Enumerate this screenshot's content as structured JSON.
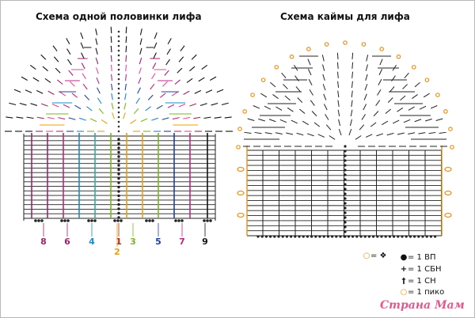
{
  "titles": {
    "left": "Схема одной половинки лифа",
    "right": "Схема каймы для лифа"
  },
  "column_numbers": [
    {
      "label": "8",
      "color": "#a0206e"
    },
    {
      "label": "6",
      "color": "#a0206e"
    },
    {
      "label": "4",
      "color": "#1a8ac8"
    },
    {
      "label": "1",
      "color": "#c0201a"
    },
    {
      "label": "2",
      "color": "#e8a10a"
    },
    {
      "label": "3",
      "color": "#7cb518"
    },
    {
      "label": "5",
      "color": "#2040a0"
    },
    {
      "label": "7",
      "color": "#c02680"
    },
    {
      "label": "9",
      "color": "#111111"
    }
  ],
  "legend": {
    "pico_equation": "= ❖",
    "ch": "= 1 ВП",
    "sc": "= 1 СБН",
    "dc": "= 1 СН",
    "pico": "= 1 пико"
  },
  "colors": {
    "rainbow": [
      "#111111",
      "#c02680",
      "#2040a0",
      "#7cb518",
      "#e8a10a",
      "#c0201a",
      "#1a8ac8",
      "#a0206e",
      "#111111"
    ],
    "border": "#e8901a",
    "grid": "#222222"
  },
  "watermark": "Страна Мам"
}
